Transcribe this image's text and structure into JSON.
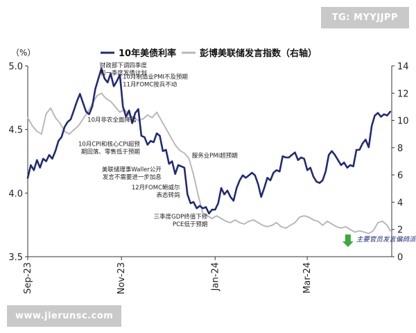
{
  "watermark": {
    "top_right": "TG: MYYJJPP",
    "bottom_left": "www.jierunsc.com"
  },
  "colors": {
    "yield": "#1f2a78",
    "fedspeak": "#b8b8b8",
    "arrow": "#3caa3c",
    "axis": "#333333"
  },
  "chart_data": {
    "type": "line",
    "title": "",
    "left_axis": {
      "unit_label": "（%）",
      "ylim": [
        3.5,
        5.0
      ],
      "ticks": [
        "3.5",
        "4.0",
        "4.5",
        "5.0"
      ]
    },
    "right_axis": {
      "ylim": [
        0,
        14
      ],
      "ticks": [
        "0",
        "2",
        "4",
        "6",
        "8",
        "10",
        "12",
        "14"
      ]
    },
    "x_axis": {
      "range": [
        "2023-09-01",
        "2024-04-25"
      ],
      "tick_labels": [
        {
          "date": "2023-09-01",
          "label": "Sep-23"
        },
        {
          "date": "2023-11-01",
          "label": "Nov-23"
        },
        {
          "date": "2024-01-01",
          "label": "Jan-24"
        },
        {
          "date": "2024-03-01",
          "label": "Mar-24"
        }
      ]
    },
    "legend": {
      "position": "top",
      "entries": [
        "10年美债利率",
        "彭博美联储发言指数（右轴）"
      ]
    },
    "series": [
      {
        "name": "10年美债利率",
        "axis": "left",
        "color": "#1f2a78",
        "points": [
          [
            "2023-09-01",
            4.12
          ],
          [
            "2023-09-03",
            4.22
          ],
          [
            "2023-09-05",
            4.18
          ],
          [
            "2023-09-07",
            4.26
          ],
          [
            "2023-09-09",
            4.2
          ],
          [
            "2023-09-11",
            4.27
          ],
          [
            "2023-09-13",
            4.25
          ],
          [
            "2023-09-15",
            4.3
          ],
          [
            "2023-09-17",
            4.27
          ],
          [
            "2023-09-19",
            4.33
          ],
          [
            "2023-09-21",
            4.41
          ],
          [
            "2023-09-23",
            4.44
          ],
          [
            "2023-09-25",
            4.52
          ],
          [
            "2023-09-27",
            4.56
          ],
          [
            "2023-09-29",
            4.58
          ],
          [
            "2023-10-01",
            4.65
          ],
          [
            "2023-10-03",
            4.72
          ],
          [
            "2023-10-05",
            4.78
          ],
          [
            "2023-10-07",
            4.71
          ],
          [
            "2023-10-09",
            4.64
          ],
          [
            "2023-10-11",
            4.62
          ],
          [
            "2023-10-13",
            4.68
          ],
          [
            "2023-10-15",
            4.82
          ],
          [
            "2023-10-17",
            4.9
          ],
          [
            "2023-10-19",
            4.98
          ],
          [
            "2023-10-21",
            4.9
          ],
          [
            "2023-10-23",
            4.87
          ],
          [
            "2023-10-25",
            4.94
          ],
          [
            "2023-10-27",
            4.84
          ],
          [
            "2023-10-29",
            4.88
          ],
          [
            "2023-10-31",
            4.93
          ],
          [
            "2023-11-02",
            4.68
          ],
          [
            "2023-11-04",
            4.6
          ],
          [
            "2023-11-06",
            4.65
          ],
          [
            "2023-11-08",
            4.55
          ],
          [
            "2023-11-10",
            4.63
          ],
          [
            "2023-11-12",
            4.66
          ],
          [
            "2023-11-14",
            4.45
          ],
          [
            "2023-11-16",
            4.44
          ],
          [
            "2023-11-18",
            4.38
          ],
          [
            "2023-11-20",
            4.41
          ],
          [
            "2023-11-22",
            4.4
          ],
          [
            "2023-11-24",
            4.47
          ],
          [
            "2023-11-26",
            4.45
          ],
          [
            "2023-11-28",
            4.33
          ],
          [
            "2023-11-30",
            4.34
          ],
          [
            "2023-12-02",
            4.23
          ],
          [
            "2023-12-04",
            4.25
          ],
          [
            "2023-12-06",
            4.15
          ],
          [
            "2023-12-08",
            4.22
          ],
          [
            "2023-12-10",
            4.21
          ],
          [
            "2023-12-12",
            4.2
          ],
          [
            "2023-12-14",
            3.99
          ],
          [
            "2023-12-16",
            3.92
          ],
          [
            "2023-12-18",
            3.93
          ],
          [
            "2023-12-20",
            3.88
          ],
          [
            "2023-12-22",
            3.9
          ],
          [
            "2023-12-24",
            3.88
          ],
          [
            "2023-12-26",
            3.89
          ],
          [
            "2023-12-28",
            3.84
          ],
          [
            "2023-12-30",
            3.87
          ],
          [
            "2024-01-01",
            3.87
          ],
          [
            "2024-01-03",
            3.92
          ],
          [
            "2024-01-05",
            4.04
          ],
          [
            "2024-01-07",
            3.99
          ],
          [
            "2024-01-09",
            4.02
          ],
          [
            "2024-01-11",
            3.97
          ],
          [
            "2024-01-13",
            3.94
          ],
          [
            "2024-01-15",
            4.04
          ],
          [
            "2024-01-17",
            4.1
          ],
          [
            "2024-01-19",
            4.14
          ],
          [
            "2024-01-21",
            4.12
          ],
          [
            "2024-01-23",
            4.14
          ],
          [
            "2024-01-25",
            4.16
          ],
          [
            "2024-01-27",
            4.14
          ],
          [
            "2024-01-29",
            4.07
          ],
          [
            "2024-01-31",
            3.97
          ],
          [
            "2024-02-02",
            4.04
          ],
          [
            "2024-02-04",
            4.12
          ],
          [
            "2024-02-06",
            4.1
          ],
          [
            "2024-02-08",
            4.16
          ],
          [
            "2024-02-10",
            4.18
          ],
          [
            "2024-02-12",
            4.17
          ],
          [
            "2024-02-14",
            4.29
          ],
          [
            "2024-02-16",
            4.28
          ],
          [
            "2024-02-18",
            4.28
          ],
          [
            "2024-02-20",
            4.3
          ],
          [
            "2024-02-22",
            4.32
          ],
          [
            "2024-02-24",
            4.26
          ],
          [
            "2024-02-26",
            4.28
          ],
          [
            "2024-02-28",
            4.27
          ],
          [
            "2024-03-01",
            4.18
          ],
          [
            "2024-03-03",
            4.2
          ],
          [
            "2024-03-05",
            4.13
          ],
          [
            "2024-03-07",
            4.09
          ],
          [
            "2024-03-09",
            4.08
          ],
          [
            "2024-03-11",
            4.1
          ],
          [
            "2024-03-13",
            4.17
          ],
          [
            "2024-03-15",
            4.3
          ],
          [
            "2024-03-17",
            4.33
          ],
          [
            "2024-03-19",
            4.3
          ],
          [
            "2024-03-21",
            4.26
          ],
          [
            "2024-03-23",
            4.22
          ],
          [
            "2024-03-25",
            4.24
          ],
          [
            "2024-03-27",
            4.2
          ],
          [
            "2024-03-29",
            4.22
          ],
          [
            "2024-03-31",
            4.21
          ],
          [
            "2024-04-02",
            4.34
          ],
          [
            "2024-04-04",
            4.34
          ],
          [
            "2024-04-06",
            4.39
          ],
          [
            "2024-04-08",
            4.42
          ],
          [
            "2024-04-10",
            4.36
          ],
          [
            "2024-04-12",
            4.53
          ],
          [
            "2024-04-14",
            4.61
          ],
          [
            "2024-04-16",
            4.63
          ],
          [
            "2024-04-18",
            4.6
          ],
          [
            "2024-04-20",
            4.62
          ],
          [
            "2024-04-22",
            4.61
          ],
          [
            "2024-04-24",
            4.64
          ]
        ]
      },
      {
        "name": "彭博美联储发言指数（右轴）",
        "axis": "right",
        "color": "#b8b8b8",
        "points": [
          [
            "2023-09-01",
            10.2
          ],
          [
            "2023-09-04",
            9.6
          ],
          [
            "2023-09-07",
            9.2
          ],
          [
            "2023-09-10",
            9.0
          ],
          [
            "2023-09-13",
            10.5
          ],
          [
            "2023-09-16",
            10.9
          ],
          [
            "2023-09-19",
            10.2
          ],
          [
            "2023-09-22",
            9.8
          ],
          [
            "2023-09-25",
            9.2
          ],
          [
            "2023-09-28",
            9.0
          ],
          [
            "2023-10-01",
            9.3
          ],
          [
            "2023-10-04",
            9.6
          ],
          [
            "2023-10-07",
            10.1
          ],
          [
            "2023-10-10",
            10.6
          ],
          [
            "2023-10-13",
            11.2
          ],
          [
            "2023-10-16",
            11.8
          ],
          [
            "2023-10-19",
            12.0
          ],
          [
            "2023-10-22",
            11.6
          ],
          [
            "2023-10-25",
            11.4
          ],
          [
            "2023-10-28",
            11.0
          ],
          [
            "2023-10-31",
            10.6
          ],
          [
            "2023-11-03",
            10.8
          ],
          [
            "2023-11-06",
            10.4
          ],
          [
            "2023-11-09",
            10.2
          ],
          [
            "2023-11-12",
            10.0
          ],
          [
            "2023-11-15",
            10.1
          ],
          [
            "2023-11-18",
            10.4
          ],
          [
            "2023-11-21",
            10.2
          ],
          [
            "2023-11-24",
            10.6
          ],
          [
            "2023-11-27",
            10.0
          ],
          [
            "2023-11-30",
            9.4
          ],
          [
            "2023-12-03",
            8.8
          ],
          [
            "2023-12-06",
            8.2
          ],
          [
            "2023-12-09",
            7.8
          ],
          [
            "2023-12-12",
            7.6
          ],
          [
            "2023-12-15",
            7.2
          ],
          [
            "2023-12-18",
            6.0
          ],
          [
            "2023-12-21",
            4.5
          ],
          [
            "2023-12-24",
            3.2
          ],
          [
            "2023-12-27",
            3.0
          ],
          [
            "2023-12-30",
            2.8
          ],
          [
            "2024-01-02",
            3.0
          ],
          [
            "2024-01-05",
            2.8
          ],
          [
            "2024-01-08",
            2.6
          ],
          [
            "2024-01-11",
            2.5
          ],
          [
            "2024-01-14",
            2.7
          ],
          [
            "2024-01-17",
            2.5
          ],
          [
            "2024-01-20",
            2.4
          ],
          [
            "2024-01-23",
            2.6
          ],
          [
            "2024-01-26",
            2.7
          ],
          [
            "2024-01-29",
            2.5
          ],
          [
            "2024-02-01",
            2.3
          ],
          [
            "2024-02-04",
            2.2
          ],
          [
            "2024-02-07",
            2.3
          ],
          [
            "2024-02-10",
            2.5
          ],
          [
            "2024-02-13",
            2.2
          ],
          [
            "2024-02-16",
            2.1
          ],
          [
            "2024-02-19",
            2.3
          ],
          [
            "2024-02-22",
            2.5
          ],
          [
            "2024-02-25",
            2.9
          ],
          [
            "2024-02-28",
            3.0
          ],
          [
            "2024-03-02",
            2.9
          ],
          [
            "2024-03-05",
            2.7
          ],
          [
            "2024-03-08",
            2.6
          ],
          [
            "2024-03-11",
            2.3
          ],
          [
            "2024-03-14",
            2.6
          ],
          [
            "2024-03-17",
            2.4
          ],
          [
            "2024-03-20",
            2.2
          ],
          [
            "2024-03-23",
            2.1
          ],
          [
            "2024-03-26",
            2.2
          ],
          [
            "2024-03-29",
            2.0
          ],
          [
            "2024-04-01",
            1.8
          ],
          [
            "2024-04-04",
            1.9
          ],
          [
            "2024-04-07",
            1.8
          ],
          [
            "2024-04-10",
            1.7
          ],
          [
            "2024-04-13",
            1.9
          ],
          [
            "2024-04-16",
            2.5
          ],
          [
            "2024-04-19",
            2.6
          ],
          [
            "2024-04-22",
            2.3
          ],
          [
            "2024-04-24",
            1.9
          ]
        ]
      }
    ],
    "annotations": [
      {
        "date": "2023-10-17",
        "value": 4.99,
        "lines": [
          "财政部下调四季度",
          "和一季度发债计划"
        ],
        "anchor": "start"
      },
      {
        "date": "2023-11-01",
        "value": 4.9,
        "lines": [
          "10月制造业PMI不及预期",
          "11月FOMC按兵不动"
        ],
        "anchor": "start"
      },
      {
        "date": "2023-10-09",
        "value": 4.56,
        "lines": [
          "10月非农全面降温"
        ],
        "anchor": "start"
      },
      {
        "date": "2023-11-14",
        "value": 4.37,
        "lines": [
          "10月CPI和核心CPI超预",
          "期回落、零售低于预期"
        ],
        "anchor": "end"
      },
      {
        "date": "2023-12-16",
        "value": 4.28,
        "lines": [
          "服务业PMI超预期"
        ],
        "anchor": "start"
      },
      {
        "date": "2023-11-28",
        "value": 4.17,
        "lines": [
          "美联储理事Waller公开",
          "发言不需要进一步加息"
        ],
        "anchor": "end"
      },
      {
        "date": "2023-12-10",
        "value": 4.03,
        "lines": [
          "12月FOMC鲍威尔",
          "表态转鸽"
        ],
        "anchor": "end"
      },
      {
        "date": "2023-12-28",
        "value": 3.8,
        "lines": [
          "三季度GDP终值下修",
          "PCE低于预期"
        ],
        "anchor": "end"
      },
      {
        "date": "2024-04-01",
        "value": 3.62,
        "lines": [
          "主要官员发言偏鸽派"
        ],
        "anchor": "start",
        "italic": true,
        "arrow": true
      }
    ]
  }
}
